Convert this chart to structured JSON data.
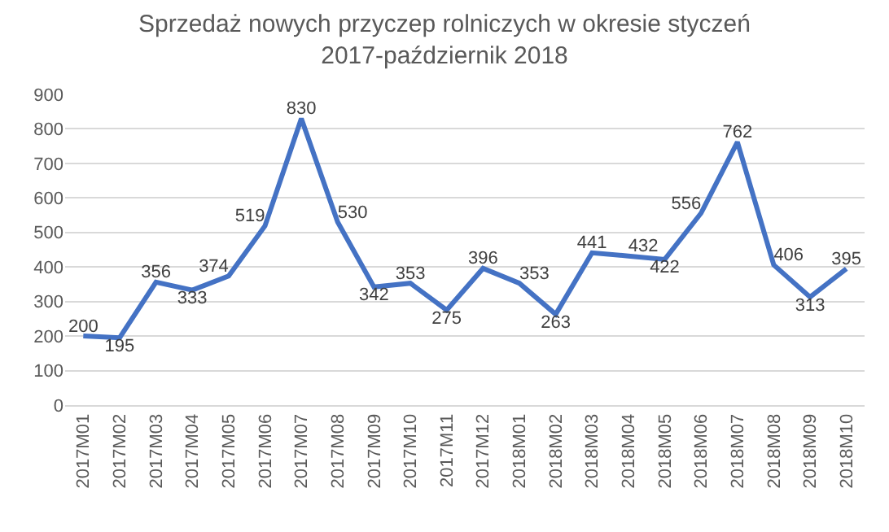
{
  "chart_data": {
    "type": "line",
    "title": "Sprzedaż nowych przyczep rolniczych w okresie styczeń\n2017-październik 2018",
    "categories": [
      "2017M01",
      "2017M02",
      "2017M03",
      "2017M04",
      "2017M05",
      "2017M06",
      "2017M07",
      "2017M08",
      "2017M09",
      "2017M10",
      "2017M11",
      "2017M12",
      "2018M01",
      "2018M02",
      "2018M03",
      "2018M04",
      "2018M05",
      "2018M06",
      "2018M07",
      "2018M08",
      "2018M09",
      "2018M10"
    ],
    "series": [
      {
        "color": "#4472c4",
        "values": [
          200,
          195,
          356,
          333,
          374,
          519,
          830,
          530,
          342,
          353,
          275,
          396,
          353,
          263,
          441,
          432,
          422,
          556,
          762,
          406,
          313,
          395
        ]
      }
    ],
    "ylim": [
      0,
      900
    ],
    "yticks": [
      0,
      100,
      200,
      300,
      400,
      500,
      600,
      700,
      800,
      900
    ],
    "grid": "y",
    "data_labels": true,
    "marker": "none",
    "line_style": "solid"
  }
}
